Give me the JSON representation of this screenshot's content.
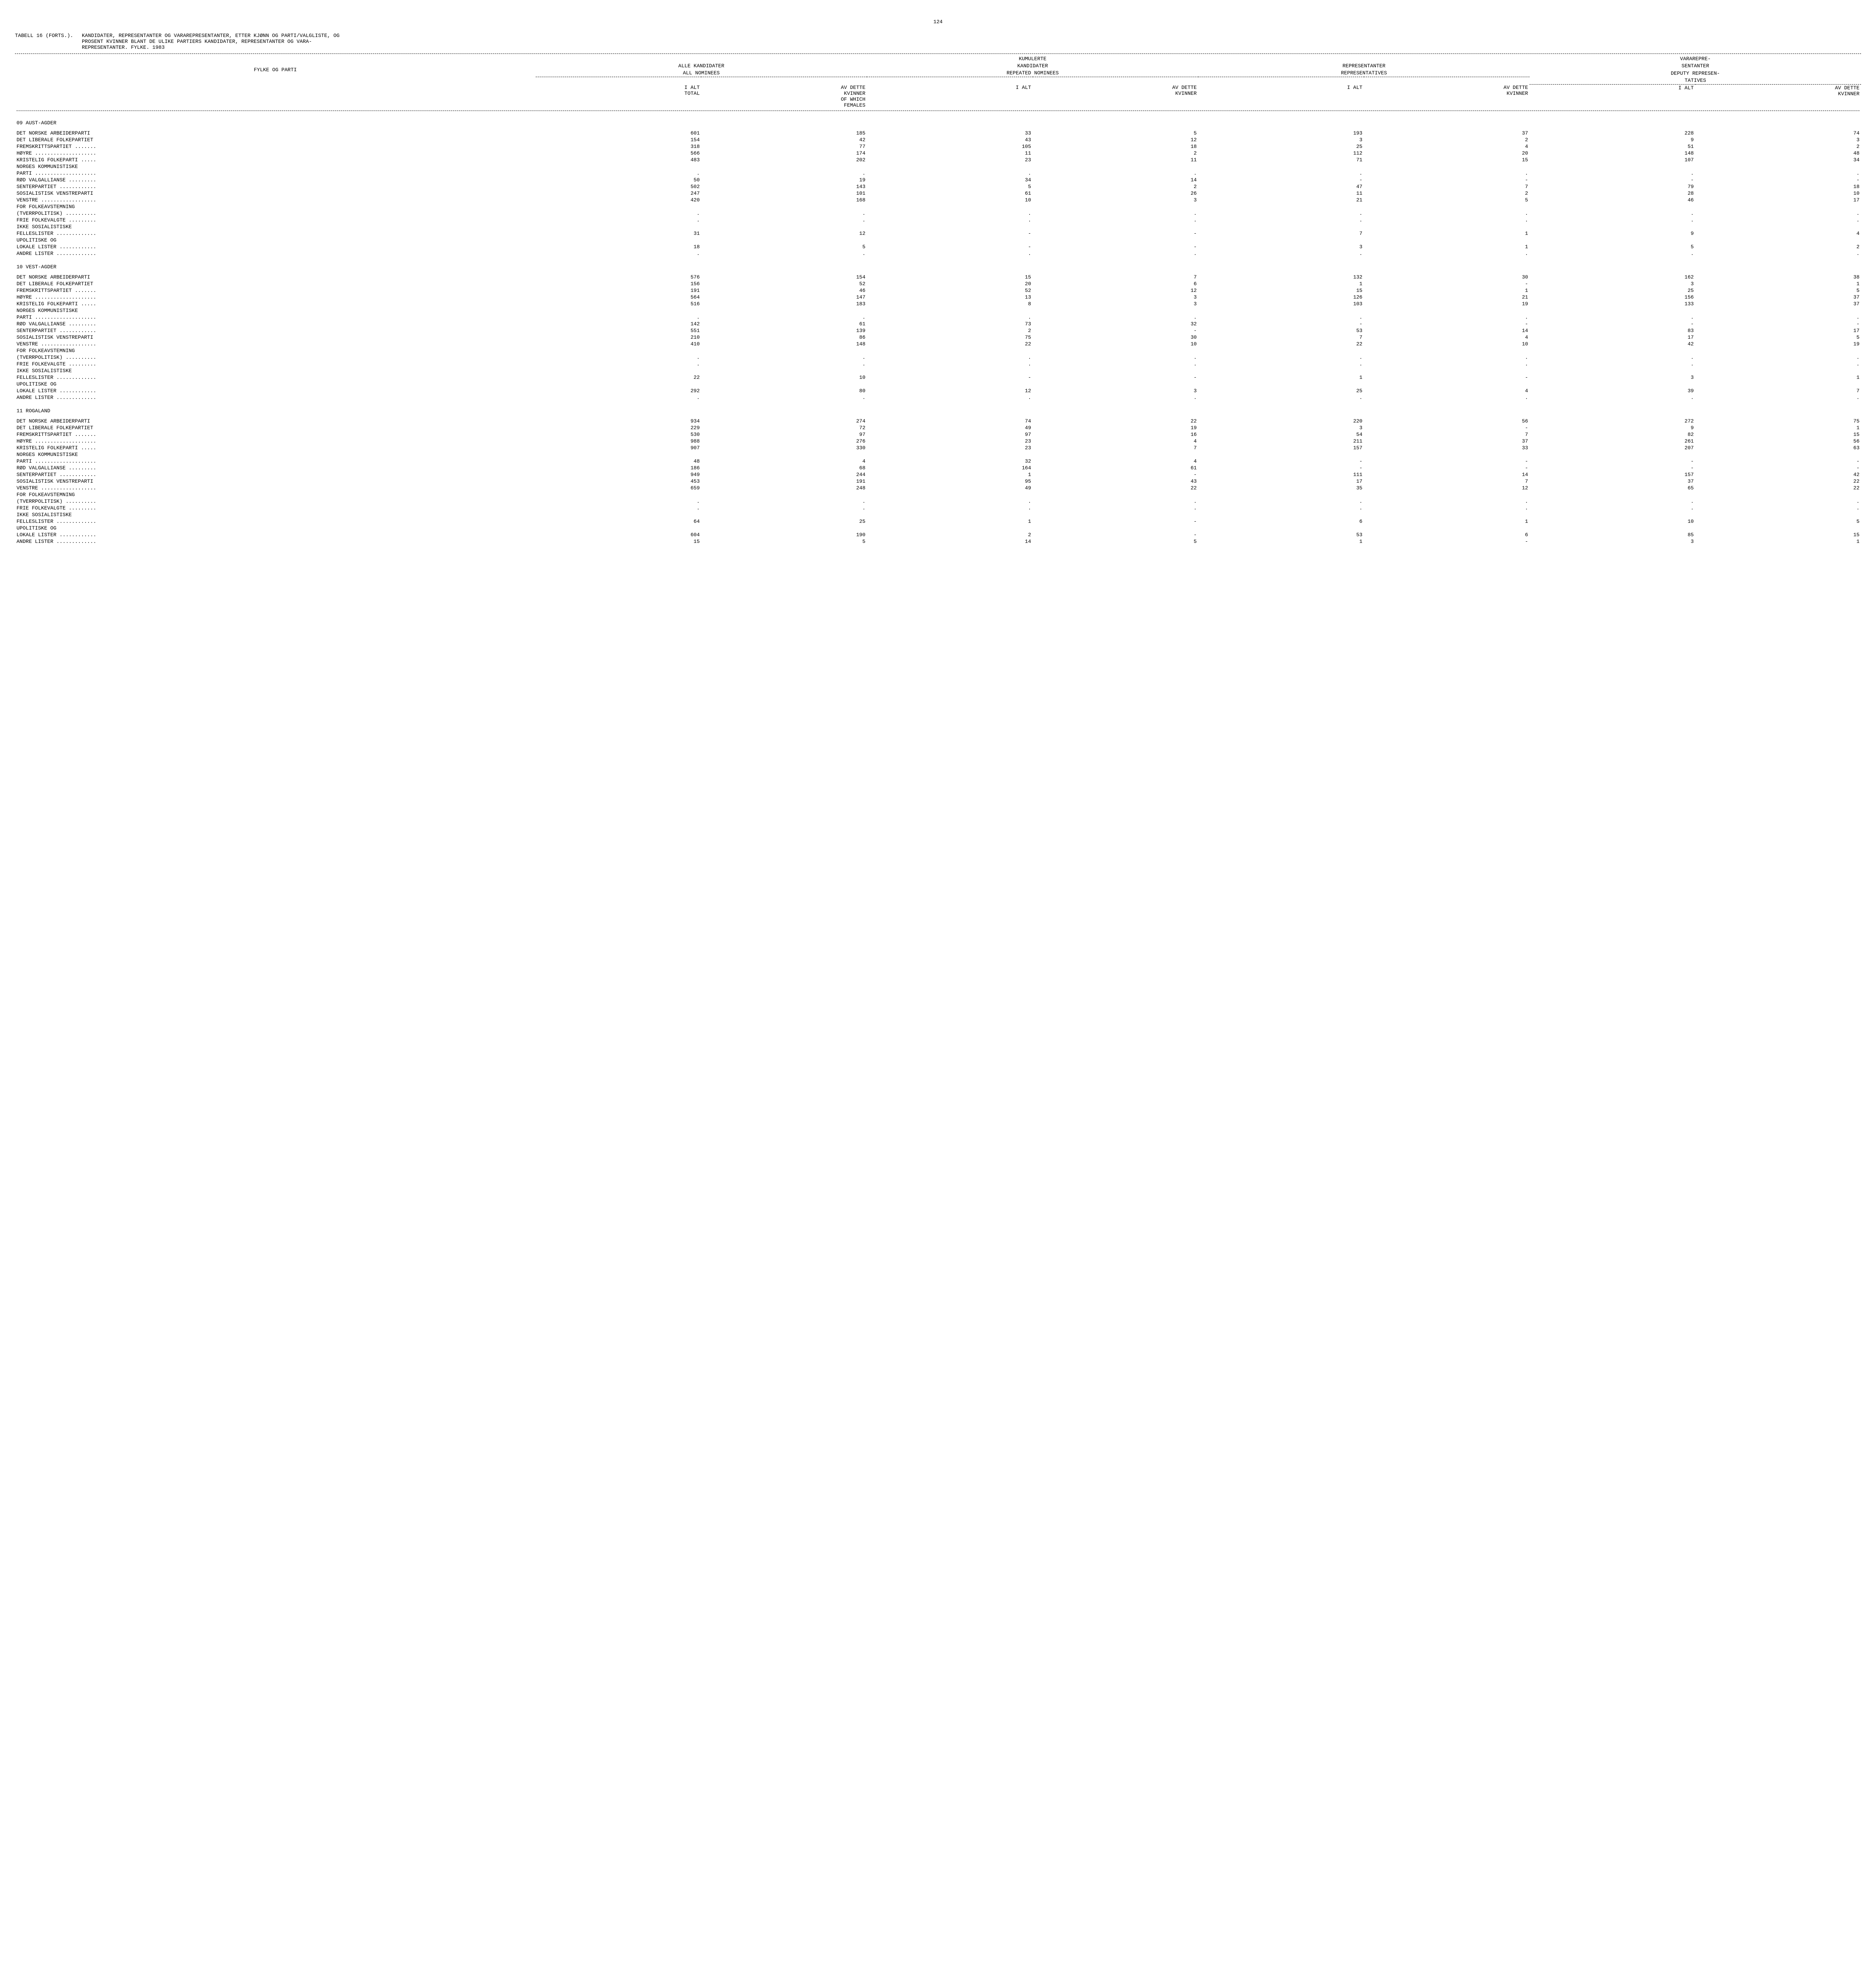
{
  "page_number": "124",
  "table_label": "TABELL 16 (FORTS.).",
  "title_lines": [
    "KANDIDATER, REPRESENTANTER OG VARAREPRESENTANTER, ETTER KJØNN OG PARTI/VALGLISTE, OG",
    "PROSENT KVINNER BLANT DE ULIKE PARTIERS KANDIDATER, REPRESENTANTER OG VARA-",
    "REPRESENTANTER.  FYLKE.  1983"
  ],
  "row_header_label": "FYLKE OG PARTI",
  "column_groups": [
    {
      "line1": "",
      "line2": "ALLE KANDIDATER",
      "line3": "ALL NOMINEES"
    },
    {
      "line1": "KUMULERTE",
      "line2": "KANDIDATER",
      "line3": "REPEATED NOMINEES"
    },
    {
      "line1": "",
      "line2": "REPRESENTANTER",
      "line3": "REPRESENTATIVES"
    },
    {
      "line1": "VARAREPRE-",
      "line2": "SENTANTER",
      "line3": "DEPUTY REPRESEN-",
      "line4": "TATIVES"
    }
  ],
  "sub_headers": {
    "col_a": "I ALT\nTOTAL",
    "col_b": "AV DETTE\nKVINNER\nOF WHICH\nFEMALES",
    "col_c": "I ALT",
    "col_d": "AV DETTE\nKVINNER",
    "col_e": "I ALT",
    "col_f": "AV DETTE\nKVINNER",
    "col_g": "I ALT",
    "col_h": "AV DETTE\nKVINNER"
  },
  "sections": [
    {
      "title": "09 AUST-AGDER",
      "rows": [
        {
          "label": "DET NORSKE ARBEIDERPARTI",
          "v": [
            "601",
            "185",
            "33",
            "5",
            "193",
            "37",
            "228",
            "74"
          ]
        },
        {
          "label": "DET LIBERALE FOLKEPARTIET",
          "v": [
            "154",
            "42",
            "43",
            "12",
            "3",
            "2",
            "9",
            "3"
          ]
        },
        {
          "label": "FREMSKRITTSPARTIET .......",
          "v": [
            "318",
            "77",
            "105",
            "18",
            "25",
            "4",
            "51",
            "2"
          ]
        },
        {
          "label": "HØYRE ....................",
          "v": [
            "566",
            "174",
            "11",
            "2",
            "112",
            "20",
            "148",
            "48"
          ]
        },
        {
          "label": "KRISTELIG FOLKEPARTI .....",
          "v": [
            "483",
            "202",
            "23",
            "11",
            "71",
            "15",
            "107",
            "34"
          ]
        },
        {
          "label": "NORGES KOMMUNISTISKE",
          "v": [
            "",
            "",
            "",
            "",
            "",
            "",
            "",
            ""
          ]
        },
        {
          "label": "PARTI ....................",
          "v": [
            ".",
            ".",
            ".",
            ".",
            ".",
            ".",
            ".",
            "."
          ]
        },
        {
          "label": "RØD VALGALLIANSE .........",
          "v": [
            "50",
            "19",
            "34",
            "14",
            "-",
            "-",
            "-",
            "-"
          ]
        },
        {
          "label": "SENTERPARTIET ............",
          "v": [
            "502",
            "143",
            "5",
            "2",
            "47",
            "7",
            "79",
            "18"
          ]
        },
        {
          "label": "SOSIALISTISK VENSTREPARTI",
          "v": [
            "247",
            "101",
            "61",
            "26",
            "11",
            "2",
            "28",
            "10"
          ]
        },
        {
          "label": "VENSTRE ..................",
          "v": [
            "420",
            "168",
            "10",
            "3",
            "21",
            "5",
            "46",
            "17"
          ]
        },
        {
          "label": "FOR FOLKEAVSTEMNING",
          "v": [
            "",
            "",
            "",
            "",
            "",
            "",
            "",
            ""
          ]
        },
        {
          "label": "(TVERRPOLITISK) ..........",
          "v": [
            ".",
            ".",
            ".",
            ".",
            ".",
            ".",
            ".",
            "."
          ]
        },
        {
          "label": "FRIE FOLKEVALGTE .........",
          "v": [
            ".",
            ".",
            ".",
            ".",
            ".",
            ".",
            ".",
            "."
          ]
        },
        {
          "label": "IKKE SOSIALISTISKE",
          "v": [
            "",
            "",
            "",
            "",
            "",
            "",
            "",
            ""
          ]
        },
        {
          "label": "FELLESLISTER .............",
          "v": [
            "31",
            "12",
            "-",
            "-",
            "7",
            "1",
            "9",
            "4"
          ]
        },
        {
          "label": "UPOLITISKE OG",
          "v": [
            "",
            "",
            "",
            "",
            "",
            "",
            "",
            ""
          ]
        },
        {
          "label": "LOKALE LISTER ............",
          "v": [
            "18",
            "5",
            "-",
            "-",
            "3",
            "1",
            "5",
            "2"
          ]
        },
        {
          "label": "ANDRE LISTER .............",
          "v": [
            ".",
            ".",
            ".",
            ".",
            ".",
            ".",
            ".",
            "."
          ]
        }
      ]
    },
    {
      "title": "10 VEST-AGDER",
      "rows": [
        {
          "label": "DET NORSKE ARBEIDERPARTI",
          "v": [
            "576",
            "154",
            "15",
            "7",
            "132",
            "30",
            "162",
            "38"
          ]
        },
        {
          "label": "DET LIBERALE FOLKEPARTIET",
          "v": [
            "156",
            "52",
            "20",
            "6",
            "1",
            "-",
            "3",
            "1"
          ]
        },
        {
          "label": "FREMSKRITTSPARTIET .......",
          "v": [
            "191",
            "46",
            "52",
            "12",
            "15",
            "1",
            "25",
            "5"
          ]
        },
        {
          "label": "HØYRE ....................",
          "v": [
            "564",
            "147",
            "13",
            "3",
            "126",
            "21",
            "156",
            "37"
          ]
        },
        {
          "label": "KRISTELIG FOLKEPARTI .....",
          "v": [
            "516",
            "183",
            "8",
            "3",
            "103",
            "19",
            "133",
            "37"
          ]
        },
        {
          "label": "NORGES KOMMUNISTISKE",
          "v": [
            "",
            "",
            "",
            "",
            "",
            "",
            "",
            ""
          ]
        },
        {
          "label": "PARTI ....................",
          "v": [
            ".",
            ".",
            ".",
            ".",
            ".",
            ".",
            ".",
            "."
          ]
        },
        {
          "label": "RØD VALGALLIANSE .........",
          "v": [
            "142",
            "61",
            "73",
            "32",
            "-",
            "-",
            "-",
            "-"
          ]
        },
        {
          "label": "SENTERPARTIET ............",
          "v": [
            "551",
            "139",
            "2",
            "-",
            "53",
            "14",
            "83",
            "17"
          ]
        },
        {
          "label": "SOSIALISTISK VENSTREPARTI",
          "v": [
            "210",
            "86",
            "75",
            "30",
            "7",
            "4",
            "17",
            "5"
          ]
        },
        {
          "label": "VENSTRE ..................",
          "v": [
            "410",
            "148",
            "22",
            "10",
            "22",
            "10",
            "42",
            "19"
          ]
        },
        {
          "label": "FOR FOLKEAVSTEMNING",
          "v": [
            "",
            "",
            "",
            "",
            "",
            "",
            "",
            ""
          ]
        },
        {
          "label": "(TVERRPOLITISK) ..........",
          "v": [
            ".",
            ".",
            ".",
            ".",
            ".",
            ".",
            ".",
            "."
          ]
        },
        {
          "label": "FRIE FOLKEVALGTE .........",
          "v": [
            ".",
            ".",
            ".",
            ".",
            ".",
            ".",
            ".",
            "."
          ]
        },
        {
          "label": "IKKE SOSIALISTISKE",
          "v": [
            "",
            "",
            "",
            "",
            "",
            "",
            "",
            ""
          ]
        },
        {
          "label": "FELLESLISTER .............",
          "v": [
            "22",
            "10",
            "-",
            "-",
            "1",
            "-",
            "3",
            "1"
          ]
        },
        {
          "label": "UPOLITISKE OG",
          "v": [
            "",
            "",
            "",
            "",
            "",
            "",
            "",
            ""
          ]
        },
        {
          "label": "LOKALE LISTER ............",
          "v": [
            "292",
            "80",
            "12",
            "3",
            "25",
            "4",
            "39",
            "7"
          ]
        },
        {
          "label": "ANDRE LISTER .............",
          "v": [
            ".",
            ".",
            ".",
            ".",
            ".",
            ".",
            ".",
            "."
          ]
        }
      ]
    },
    {
      "title": "11 ROGALAND",
      "rows": [
        {
          "label": "DET NORSKE ARBEIDERPARTI",
          "v": [
            "934",
            "274",
            "74",
            "22",
            "220",
            "56",
            "272",
            "75"
          ]
        },
        {
          "label": "DET LIBERALE FOLKEPARTIET",
          "v": [
            "229",
            "72",
            "49",
            "19",
            "3",
            "-",
            "9",
            "1"
          ]
        },
        {
          "label": "FREMSKRITTSPARTIET .......",
          "v": [
            "530",
            "97",
            "97",
            "16",
            "54",
            "7",
            "82",
            "15"
          ]
        },
        {
          "label": "HØYRE ....................",
          "v": [
            "988",
            "276",
            "23",
            "4",
            "211",
            "37",
            "261",
            "56"
          ]
        },
        {
          "label": "KRISTELIG FOLKEPARTI .....",
          "v": [
            "907",
            "330",
            "23",
            "7",
            "157",
            "33",
            "207",
            "63"
          ]
        },
        {
          "label": "NORGES KOMMUNISTISKE",
          "v": [
            "",
            "",
            "",
            "",
            "",
            "",
            "",
            ""
          ]
        },
        {
          "label": "PARTI ....................",
          "v": [
            "48",
            "4",
            "32",
            "4",
            "-",
            "-",
            "-",
            "-"
          ]
        },
        {
          "label": "RØD VALGALLIANSE .........",
          "v": [
            "186",
            "68",
            "164",
            "61",
            "-",
            "-",
            "-",
            "-"
          ]
        },
        {
          "label": "SENTERPARTIET ............",
          "v": [
            "949",
            "244",
            "1",
            "-",
            "111",
            "14",
            "157",
            "42"
          ]
        },
        {
          "label": "SOSIALISTISK VENSTREPARTI",
          "v": [
            "453",
            "191",
            "95",
            "43",
            "17",
            "7",
            "37",
            "22"
          ]
        },
        {
          "label": "VENSTRE ..................",
          "v": [
            "659",
            "248",
            "49",
            "22",
            "35",
            "12",
            "65",
            "22"
          ]
        },
        {
          "label": "FOR FOLKEAVSTEMNING",
          "v": [
            "",
            "",
            "",
            "",
            "",
            "",
            "",
            ""
          ]
        },
        {
          "label": "(TVERRPOLITISK) ..........",
          "v": [
            ".",
            ".",
            ".",
            ".",
            ".",
            ".",
            ".",
            "."
          ]
        },
        {
          "label": "FRIE FOLKEVALGTE .........",
          "v": [
            ".",
            ".",
            ".",
            ".",
            ".",
            ".",
            ".",
            "."
          ]
        },
        {
          "label": "IKKE SOSIALISTISKE",
          "v": [
            "",
            "",
            "",
            "",
            "",
            "",
            "",
            ""
          ]
        },
        {
          "label": "FELLESLISTER .............",
          "v": [
            "64",
            "25",
            "1",
            "-",
            "6",
            "1",
            "10",
            "5"
          ]
        },
        {
          "label": "UPOLITISKE OG",
          "v": [
            "",
            "",
            "",
            "",
            "",
            "",
            "",
            ""
          ]
        },
        {
          "label": "LOKALE LISTER ............",
          "v": [
            "604",
            "190",
            "2",
            "-",
            "53",
            "6",
            "85",
            "15"
          ]
        },
        {
          "label": "ANDRE LISTER .............",
          "v": [
            "15",
            "5",
            "14",
            "5",
            "1",
            "-",
            "3",
            "1"
          ]
        }
      ]
    }
  ]
}
